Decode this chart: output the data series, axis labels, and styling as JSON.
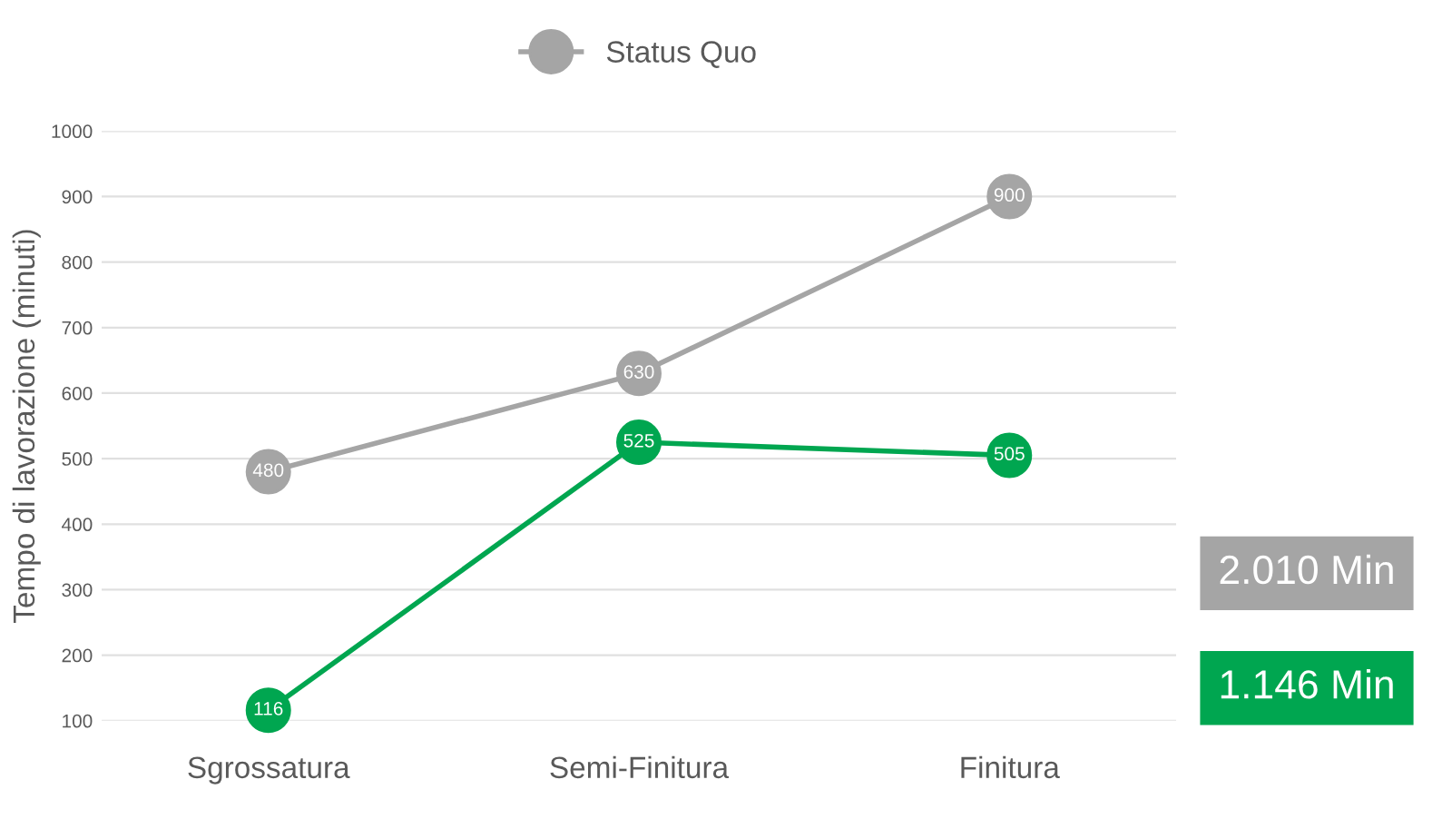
{
  "chart_data": {
    "type": "line",
    "ylabel": "Tempo di lavorazione (minuti)",
    "categories": [
      "Sgrossatura",
      "Semi-Finitura",
      "Finitura"
    ],
    "series": [
      {
        "name": "Status Quo",
        "color": "#a5a5a5",
        "values": [
          480,
          630,
          900
        ]
      },
      {
        "color": "#00a650",
        "values": [
          116,
          525,
          505
        ]
      }
    ],
    "ylim": [
      100,
      1000
    ],
    "yticks": [
      100,
      200,
      300,
      400,
      500,
      600,
      700,
      800,
      900,
      1000
    ],
    "grid": "y",
    "legend": "top",
    "marker": "circle",
    "line_style": "solid",
    "data_labels": true,
    "annotations": [
      "2.010 Min",
      "1.146 Min"
    ]
  }
}
